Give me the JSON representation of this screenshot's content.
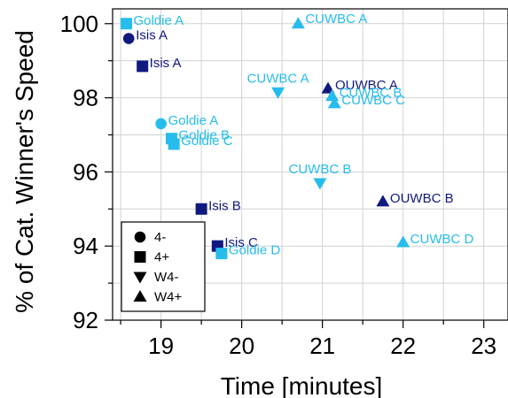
{
  "chart_data": {
    "type": "scatter",
    "title": "",
    "xlabel": "Time [minutes]",
    "ylabel": "% of Cat. Winner's Speed",
    "xlim": [
      18.4,
      23.3
    ],
    "ylim": [
      92,
      100.4
    ],
    "xticks": [
      19,
      20,
      21,
      22,
      23
    ],
    "yticks": [
      92,
      94,
      96,
      98,
      100
    ],
    "grid": true,
    "legend_position": "bottom-left",
    "colors": {
      "dark": "#10197f",
      "light": "#26bdec"
    },
    "legend": [
      {
        "marker": "circle",
        "label": "4-"
      },
      {
        "marker": "square",
        "label": "4+"
      },
      {
        "marker": "triangle-down",
        "label": "W4-"
      },
      {
        "marker": "triangle-up",
        "label": "W4+"
      }
    ],
    "points": [
      {
        "label": "Goldie A",
        "x": 18.57,
        "y": 100.0,
        "marker": "square",
        "color": "light"
      },
      {
        "label": "Isis A",
        "x": 18.6,
        "y": 99.6,
        "marker": "circle",
        "color": "dark"
      },
      {
        "label": "Isis A",
        "x": 18.77,
        "y": 98.85,
        "marker": "square",
        "color": "dark"
      },
      {
        "label": "CUWBC A",
        "x": 20.7,
        "y": 100.0,
        "marker": "triangle-up",
        "color": "light"
      },
      {
        "label": "CUWBC A",
        "x": 20.45,
        "y": 98.15,
        "marker": "triangle-down",
        "color": "light"
      },
      {
        "label": "OUWBC A",
        "x": 21.07,
        "y": 98.25,
        "marker": "triangle-up",
        "color": "dark"
      },
      {
        "label": "CUWBC B",
        "x": 21.12,
        "y": 98.05,
        "marker": "triangle-up",
        "color": "light"
      },
      {
        "label": "CUWBC C",
        "x": 21.15,
        "y": 97.85,
        "marker": "triangle-up",
        "color": "light"
      },
      {
        "label": "Goldie A",
        "x": 19.0,
        "y": 97.3,
        "marker": "circle",
        "color": "light"
      },
      {
        "label": "Goldie B",
        "x": 19.13,
        "y": 96.9,
        "marker": "square",
        "color": "light"
      },
      {
        "label": "Goldie C",
        "x": 19.16,
        "y": 96.75,
        "marker": "square",
        "color": "light"
      },
      {
        "label": "CUWBC B",
        "x": 20.97,
        "y": 95.7,
        "marker": "triangle-down",
        "color": "light"
      },
      {
        "label": "OUWBC B",
        "x": 21.75,
        "y": 95.2,
        "marker": "triangle-up",
        "color": "dark"
      },
      {
        "label": "Isis B",
        "x": 19.5,
        "y": 95.0,
        "marker": "square",
        "color": "dark"
      },
      {
        "label": "Isis C",
        "x": 19.7,
        "y": 94.0,
        "marker": "square",
        "color": "dark"
      },
      {
        "label": "Goldie D",
        "x": 19.75,
        "y": 93.8,
        "marker": "square",
        "color": "light"
      },
      {
        "label": "CUWBC D",
        "x": 22.0,
        "y": 94.1,
        "marker": "triangle-up",
        "color": "light"
      }
    ]
  }
}
